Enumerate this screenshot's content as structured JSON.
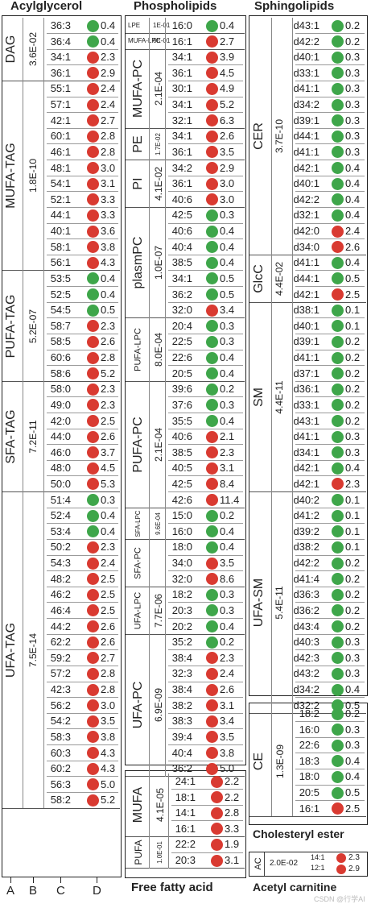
{
  "colors": {
    "green": "#3ea64a",
    "red": "#d93a31",
    "line": "#9a9a9a"
  },
  "titles": {
    "acyl": "Acylglycerol",
    "phos": "Phospholipids",
    "sphingo": "Sphingolipids",
    "ffa": "Free fatty acid",
    "ce": "Cholesteryl ester",
    "ac": "Acetyl carnitine"
  },
  "col_letters": [
    "A",
    "B",
    "C",
    "D"
  ],
  "watermark": "CSDN @行学AI",
  "panels": [
    {
      "key": "acyl",
      "x": 2,
      "labelRight": 88,
      "dotX": 108,
      "groupX": 14,
      "pvX": 41,
      "vline": [
        27,
        56
      ],
      "groups": [
        {
          "name": "DAG",
          "pval": "3.6E-02",
          "rows": [
            [
              "36:3",
              "g",
              "0.4"
            ],
            [
              "36:4",
              "g",
              "0.4"
            ],
            [
              "34:1",
              "r",
              "2.3"
            ],
            [
              "36:1",
              "r",
              "2.9"
            ]
          ]
        },
        {
          "name": "MUFA-TAG",
          "pval": "1.8E-10",
          "rows": [
            [
              "55:1",
              "r",
              "2.4"
            ],
            [
              "57:1",
              "r",
              "2.4"
            ],
            [
              "42:1",
              "r",
              "2.7"
            ],
            [
              "60:1",
              "r",
              "2.8"
            ],
            [
              "46:1",
              "r",
              "2.8"
            ],
            [
              "48:1",
              "r",
              "3.0"
            ],
            [
              "54:1",
              "r",
              "3.1"
            ],
            [
              "52:1",
              "r",
              "3.3"
            ],
            [
              "44:1",
              "r",
              "3.3"
            ],
            [
              "40:1",
              "r",
              "3.6"
            ],
            [
              "58:1",
              "r",
              "3.8"
            ],
            [
              "56:1",
              "r",
              "4.3"
            ]
          ]
        },
        {
          "name": "PUFA-TAG",
          "pval": "5.2E-07",
          "rows": [
            [
              "53:5",
              "g",
              "0.4"
            ],
            [
              "52:5",
              "g",
              "0.4"
            ],
            [
              "54:5",
              "g",
              "0.5"
            ],
            [
              "58:7",
              "r",
              "2.3"
            ],
            [
              "58:5",
              "r",
              "2.6"
            ],
            [
              "60:6",
              "r",
              "2.8"
            ],
            [
              "58:6",
              "r",
              "5.2"
            ]
          ]
        },
        {
          "name": "SFA-TAG",
          "pval": "7.2E-11",
          "rows": [
            [
              "58:0",
              "r",
              "2.3"
            ],
            [
              "49:0",
              "r",
              "2.3"
            ],
            [
              "42:0",
              "r",
              "2.5"
            ],
            [
              "44:0",
              "r",
              "2.6"
            ],
            [
              "46:0",
              "r",
              "3.7"
            ],
            [
              "48:0",
              "r",
              "4.5"
            ],
            [
              "50:0",
              "r",
              "5.3"
            ]
          ]
        },
        {
          "name": "UFA-TAG",
          "pval": "7.5E-14",
          "rows": [
            [
              "51:4",
              "g",
              "0.3"
            ],
            [
              "52:4",
              "g",
              "0.4"
            ],
            [
              "53:4",
              "g",
              "0.4"
            ],
            [
              "50:2",
              "r",
              "2.3"
            ],
            [
              "54:3",
              "r",
              "2.4"
            ],
            [
              "48:2",
              "r",
              "2.5"
            ],
            [
              "46:2",
              "r",
              "2.5"
            ],
            [
              "46:4",
              "r",
              "2.5"
            ],
            [
              "44:2",
              "r",
              "2.6"
            ],
            [
              "62:2",
              "r",
              "2.6"
            ],
            [
              "59:2",
              "r",
              "2.7"
            ],
            [
              "57:2",
              "r",
              "2.8"
            ],
            [
              "42:3",
              "r",
              "2.8"
            ],
            [
              "56:2",
              "r",
              "3.0"
            ],
            [
              "54:2",
              "r",
              "3.5"
            ],
            [
              "58:3",
              "r",
              "3.8"
            ],
            [
              "60:3",
              "r",
              "4.3"
            ],
            [
              "60:2",
              "r",
              "4.3"
            ],
            [
              "56:3",
              "r",
              "5.0"
            ],
            [
              "58:2",
              "r",
              "5.2"
            ]
          ]
        }
      ]
    },
    {
      "key": "phos",
      "x": 155,
      "labelRight": 239,
      "dotX": 256,
      "groupX": 172,
      "pvX": 197,
      "vline": [
        186,
        208
      ],
      "groups": [
        {
          "name": "LPE",
          "pval": "1E-01",
          "small": true,
          "rows": [
            [
              "16:0",
              "g",
              "0.4"
            ]
          ]
        },
        {
          "name": "MUFA-LPC",
          "pval": "6E-01",
          "small": true,
          "rows": [
            [
              "16:1",
              "r",
              "2.7"
            ]
          ]
        },
        {
          "name": "MUFA-PC",
          "pval": "2.1E-04",
          "rows": [
            [
              "34:1",
              "r",
              "3.9"
            ],
            [
              "36:1",
              "r",
              "4.5"
            ],
            [
              "30:1",
              "r",
              "4.9"
            ],
            [
              "34:1",
              "r",
              "5.2"
            ],
            [
              "32:1",
              "r",
              "6.3"
            ]
          ]
        },
        {
          "name": "PE",
          "pval": "1.7E-02",
          "smallp": true,
          "rows": [
            [
              "34:1",
              "r",
              "2.6"
            ],
            [
              "36:1",
              "r",
              "3.5"
            ]
          ]
        },
        {
          "name": "PI",
          "pval": "4.1E-02",
          "rows": [
            [
              "34:2",
              "r",
              "2.9"
            ],
            [
              "36:1",
              "r",
              "3.0"
            ],
            [
              "40:6",
              "r",
              "3.0"
            ]
          ]
        },
        {
          "name": "plasmPC",
          "pval": "1.0E-07",
          "rows": [
            [
              "42:5",
              "g",
              "0.3"
            ],
            [
              "40:6",
              "g",
              "0.4"
            ],
            [
              "40:4",
              "g",
              "0.4"
            ],
            [
              "38:5",
              "g",
              "0.4"
            ],
            [
              "34:1",
              "g",
              "0.5"
            ],
            [
              "36:2",
              "g",
              "0.5"
            ],
            [
              "32:0",
              "r",
              "3.4"
            ]
          ]
        },
        {
          "name": "PUFA-LPC",
          "pval": "8.0E-04",
          "medium": true,
          "rows": [
            [
              "20:4",
              "g",
              "0.3"
            ],
            [
              "22:5",
              "g",
              "0.3"
            ],
            [
              "22:6",
              "g",
              "0.4"
            ],
            [
              "20:5",
              "g",
              "0.4"
            ]
          ]
        },
        {
          "name": "PUFA-PC",
          "pval": "2.1E-04",
          "rows": [
            [
              "39:6",
              "g",
              "0.2"
            ],
            [
              "37:6",
              "g",
              "0.3"
            ],
            [
              "35:5",
              "g",
              "0.4"
            ],
            [
              "40:6",
              "r",
              "2.1"
            ],
            [
              "38:5",
              "r",
              "2.3"
            ],
            [
              "40:5",
              "r",
              "3.1"
            ],
            [
              "42:5",
              "r",
              "8.4"
            ],
            [
              "42:6",
              "r",
              "11.4"
            ]
          ]
        },
        {
          "name": "SFA-LPC",
          "pval": "9.6E-04",
          "medium": true,
          "rows": [
            [
              "15:0",
              "g",
              "0.2"
            ],
            [
              "16:0",
              "g",
              "0.4"
            ]
          ]
        },
        {
          "name": "SFA-PC",
          "pval": "",
          "medium": true,
          "rows": [
            [
              "18:0",
              "g",
              "0.4"
            ],
            [
              "34:0",
              "r",
              "3.5"
            ],
            [
              "32:0",
              "r",
              "8.6"
            ]
          ]
        },
        {
          "name": "UFA-LPC",
          "pval": "7.7E-06",
          "medium": true,
          "rows": [
            [
              "18:2",
              "g",
              "0.3"
            ],
            [
              "20:3",
              "g",
              "0.3"
            ],
            [
              "20:2",
              "g",
              "0.4"
            ]
          ]
        },
        {
          "name": "UFA-PC",
          "pval": "6.9E-09",
          "rows": [
            [
              "35:2",
              "g",
              "0.2"
            ],
            [
              "38:4",
              "r",
              "2.3"
            ],
            [
              "32:3",
              "r",
              "2.4"
            ],
            [
              "38:4",
              "r",
              "2.6"
            ],
            [
              "38:2",
              "r",
              "3.1"
            ],
            [
              "38:3",
              "r",
              "3.4"
            ],
            [
              "39:4",
              "r",
              "3.5"
            ],
            [
              "40:4",
              "r",
              "3.8"
            ],
            [
              "36:2",
              "r",
              "5.0"
            ]
          ]
        }
      ]
    },
    {
      "key": "sphingo",
      "x": 309,
      "labelRight": 397,
      "dotX": 412,
      "groupX": 322,
      "pvX": 347,
      "vline": [],
      "groups": [
        {
          "name": "CER",
          "pval": "3.7E-10",
          "rows": [
            [
              "d43:1",
              "g",
              "0.2"
            ],
            [
              "d42:2",
              "g",
              "0.2"
            ],
            [
              "d40:1",
              "g",
              "0.3"
            ],
            [
              "d33:1",
              "g",
              "0.3"
            ],
            [
              "d41:1",
              "g",
              "0.3"
            ],
            [
              "d34:2",
              "g",
              "0.3"
            ],
            [
              "d39:1",
              "g",
              "0.3"
            ],
            [
              "d44:1",
              "g",
              "0.3"
            ],
            [
              "d41:1",
              "g",
              "0.3"
            ],
            [
              "d42:1",
              "g",
              "0.4"
            ],
            [
              "d40:1",
              "g",
              "0.4"
            ],
            [
              "d42:2",
              "g",
              "0.4"
            ],
            [
              "d32:1",
              "g",
              "0.4"
            ],
            [
              "d42:0",
              "r",
              "2.4"
            ],
            [
              "d34:0",
              "r",
              "2.6"
            ]
          ]
        },
        {
          "name": "GlcC",
          "pval": "4.4E-02",
          "rows": [
            [
              "d41:1",
              "g",
              "0.4"
            ],
            [
              "d44:1",
              "g",
              "0.5"
            ],
            [
              "d42:1",
              "r",
              "2.5"
            ]
          ]
        },
        {
          "name": "SM",
          "pval": "4.4E-11",
          "rows": [
            [
              "d38:1",
              "g",
              "0.1"
            ],
            [
              "d40:1",
              "g",
              "0.1"
            ],
            [
              "d39:1",
              "g",
              "0.2"
            ],
            [
              "d41:1",
              "g",
              "0.2"
            ],
            [
              "d37:1",
              "g",
              "0.2"
            ],
            [
              "d36:1",
              "g",
              "0.2"
            ],
            [
              "d33:1",
              "g",
              "0.2"
            ],
            [
              "d43:1",
              "g",
              "0.2"
            ],
            [
              "d41:1",
              "g",
              "0.3"
            ],
            [
              "d34:1",
              "g",
              "0.3"
            ],
            [
              "d42:1",
              "g",
              "0.4"
            ],
            [
              "d42:1",
              "r",
              "2.3"
            ]
          ]
        },
        {
          "name": "UFA-SM",
          "pval": "5.4E-11",
          "rows": [
            [
              "d40:2",
              "g",
              "0.1"
            ],
            [
              "d41:2",
              "g",
              "0.1"
            ],
            [
              "d39:2",
              "g",
              "0.1"
            ],
            [
              "d38:2",
              "g",
              "0.1"
            ],
            [
              "d42:2",
              "g",
              "0.2"
            ],
            [
              "d41:4",
              "g",
              "0.2"
            ],
            [
              "d36:3",
              "g",
              "0.2"
            ],
            [
              "d36:2",
              "g",
              "0.2"
            ],
            [
              "d43:4",
              "g",
              "0.2"
            ],
            [
              "d40:3",
              "g",
              "0.3"
            ],
            [
              "d42:3",
              "g",
              "0.3"
            ],
            [
              "d43:2",
              "g",
              "0.3"
            ],
            [
              "d34:2",
              "g",
              "0.4"
            ],
            [
              "d32:2",
              "g",
              "0.5"
            ]
          ]
        }
      ]
    },
    {
      "key": "ce",
      "x": 309,
      "labelRight": 397,
      "dotX": 412,
      "groupX": 322,
      "pvX": 348,
      "vline": [],
      "groups": [
        {
          "name": "CE",
          "pval": "1.3E-09",
          "rows": [
            [
              "18:2",
              "g",
              "0.2"
            ],
            [
              "16:0",
              "g",
              "0.3"
            ],
            [
              "22:6",
              "g",
              "0.3"
            ],
            [
              "18:3",
              "g",
              "0.4"
            ],
            [
              "18:0",
              "g",
              "0.4"
            ],
            [
              "20:5",
              "g",
              "0.5"
            ],
            [
              "16:1",
              "r",
              "2.5"
            ]
          ]
        }
      ]
    },
    {
      "key": "ffa",
      "x": 155,
      "labelRight": 243,
      "dotX": 262,
      "groupX": 172,
      "pvX": 199,
      "vline": [],
      "groups": [
        {
          "name": "MUFA",
          "pval": "4.1E-05",
          "rows": [
            [
              "24:1",
              "r",
              "2.2"
            ],
            [
              "18:1",
              "r",
              "2.2"
            ],
            [
              "14:1",
              "r",
              "2.8"
            ],
            [
              "16:1",
              "r",
              "3.3"
            ]
          ]
        },
        {
          "name": "PUFA",
          "pval": "1.0E-01",
          "small2": true,
          "rows": [
            [
              "22:2",
              "r",
              "1.9"
            ],
            [
              "20:3",
              "r",
              "3.1"
            ]
          ]
        }
      ]
    }
  ],
  "ac": {
    "name": "AC",
    "pval": "2.0E-02",
    "rows": [
      [
        "14:1",
        "r",
        "2.3"
      ],
      [
        "12:1",
        "r",
        "2.9"
      ]
    ]
  }
}
